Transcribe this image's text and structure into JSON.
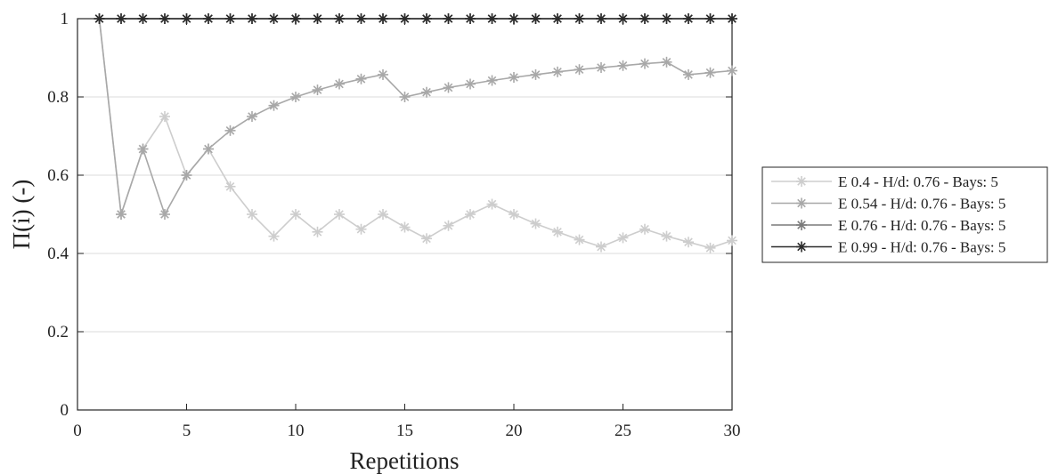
{
  "chart_data": {
    "type": "line",
    "xlabel": "Repetitions",
    "ylabel": "Π(i) (-)",
    "xlim": [
      0,
      30
    ],
    "ylim": [
      0,
      1
    ],
    "xticks": [
      "0",
      "5",
      "10",
      "15",
      "20",
      "25",
      "30"
    ],
    "yticks": [
      "0",
      "0.2",
      "0.4",
      "0.6",
      "0.8",
      "1"
    ],
    "grid": "horizontal",
    "legend_position": "right, outside",
    "x": [
      1,
      2,
      3,
      4,
      5,
      6,
      7,
      8,
      9,
      10,
      11,
      12,
      13,
      14,
      15,
      16,
      17,
      18,
      19,
      20,
      21,
      22,
      23,
      24,
      25,
      26,
      27,
      28,
      29,
      30
    ],
    "series": [
      {
        "name": "E 0.4 - H/d: 0.76 - Bays: 5",
        "color": "#cdcdcd",
        "values": [
          1,
          0.5,
          0.667,
          0.75,
          0.6,
          0.667,
          0.571,
          0.5,
          0.444,
          0.5,
          0.455,
          0.5,
          0.462,
          0.5,
          0.467,
          0.438,
          0.471,
          0.5,
          0.526,
          0.5,
          0.476,
          0.455,
          0.435,
          0.417,
          0.44,
          0.462,
          0.444,
          0.429,
          0.414,
          0.433
        ]
      },
      {
        "name": "E 0.54 - H/d: 0.76 - Bays: 5",
        "color": "#a8a8a8",
        "values": [
          1,
          0.5,
          0.667,
          0.5,
          0.6,
          0.667,
          0.714,
          0.75,
          0.778,
          0.8,
          0.818,
          0.833,
          0.846,
          0.857,
          0.8,
          0.812,
          0.824,
          0.833,
          0.842,
          0.85,
          0.857,
          0.864,
          0.87,
          0.875,
          0.88,
          0.885,
          0.889,
          0.857,
          0.862,
          0.867
        ]
      },
      {
        "name": "E 0.76 - H/d: 0.76 - Bays: 5",
        "color": "#7a7a7a",
        "values": [
          1,
          1,
          1,
          1,
          1,
          1,
          1,
          1,
          1,
          1,
          1,
          1,
          1,
          1,
          1,
          1,
          1,
          1,
          1,
          1,
          1,
          1,
          1,
          1,
          1,
          1,
          1,
          1,
          1,
          1
        ]
      },
      {
        "name": "E 0.99 - H/d: 0.76 - Bays: 5",
        "color": "#2b2b2b",
        "values": [
          1,
          1,
          1,
          1,
          1,
          1,
          1,
          1,
          1,
          1,
          1,
          1,
          1,
          1,
          1,
          1,
          1,
          1,
          1,
          1,
          1,
          1,
          1,
          1,
          1,
          1,
          1,
          1,
          1,
          1
        ]
      }
    ]
  }
}
